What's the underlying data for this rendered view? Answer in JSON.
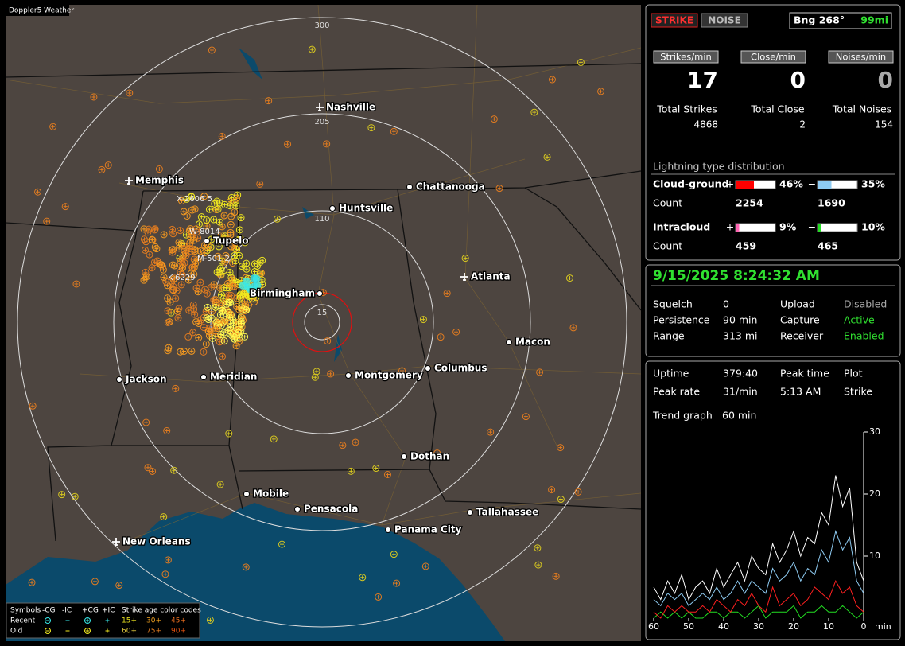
{
  "map": {
    "title": "Doppler5 Weather",
    "ring_labels": [
      "300",
      "205",
      "110",
      "15"
    ],
    "cities": [
      "Nashville",
      "Memphis",
      "Chattanooga",
      "Huntsville",
      "Tupelo",
      "Birmingham",
      "Atlanta",
      "Macon",
      "Jackson",
      "Meridian",
      "Montgomery",
      "Columbus",
      "Dothan",
      "Mobile",
      "Pensacola",
      "Tallahassee",
      "Panama City",
      "New Orleans"
    ],
    "strike_labels": [
      "X-2606 5",
      "W-8014",
      "M-501 2",
      "K-6229"
    ],
    "legend": {
      "symbols_label": "Symbols",
      "types": [
        "-CG",
        "-IC",
        "+CG",
        "+IC"
      ],
      "age_label": "Strike age color codes",
      "rows": [
        {
          "name": "Recent",
          "ages": [
            "15+",
            "30+",
            "45+"
          ]
        },
        {
          "name": "Old",
          "ages": [
            "60+",
            "75+",
            "90+"
          ]
        }
      ]
    }
  },
  "panel": {
    "modes": [
      "STRIKE",
      "NOISE"
    ],
    "bearing": "Bng 268°",
    "distance": "99mi",
    "rates": [
      {
        "label": "Strikes/min",
        "value": 17,
        "total_label": "Total Strikes",
        "total": 4868
      },
      {
        "label": "Close/min",
        "value": 0,
        "total_label": "Total Close",
        "total": 2
      },
      {
        "label": "Noises/min",
        "value": 0,
        "total_label": "Total Noises",
        "total": 154
      }
    ],
    "distribution": {
      "title": "Lightning type distribution",
      "count_label": "Count",
      "rows": [
        {
          "name": "Cloud-ground",
          "parts": [
            {
              "sign": "+",
              "color": "#ff0000",
              "value": 46,
              "label": "46%",
              "count": 2254
            },
            {
              "sign": "−",
              "color": "#8ecbf2",
              "value": 35,
              "label": "35%",
              "count": 1690
            }
          ]
        },
        {
          "name": "Intracloud",
          "parts": [
            {
              "sign": "+",
              "color": "#ff66b3",
              "value": 9,
              "label": "9%",
              "count": 459
            },
            {
              "sign": "−",
              "color": "#22dd22",
              "value": 10,
              "label": "10%",
              "count": 465
            }
          ]
        }
      ]
    },
    "datetime": "9/15/2025 8:24:32 AM",
    "settings": [
      [
        "Squelch",
        "0",
        "Upload",
        "Disabled"
      ],
      [
        "Persistence",
        "90 min",
        "Capture",
        "Active"
      ],
      [
        "Range",
        "313 mi",
        "Receiver",
        "Enabled"
      ]
    ],
    "stats": [
      [
        "Uptime",
        "379:40",
        "Peak time",
        "Plot"
      ],
      [
        "Peak rate",
        "31/min",
        "5:13 AM",
        "Strike"
      ]
    ],
    "trend": {
      "label": "Trend graph",
      "window": "60 min",
      "x_unit": "min",
      "xlim": [
        60,
        0
      ],
      "xticks": [
        60,
        50,
        40,
        30,
        20,
        10,
        0
      ],
      "ylim": [
        0,
        30
      ],
      "yticks": [
        10,
        20,
        30
      ],
      "x": [
        60,
        58,
        56,
        54,
        52,
        50,
        48,
        46,
        44,
        42,
        40,
        38,
        36,
        34,
        32,
        30,
        28,
        26,
        24,
        22,
        20,
        18,
        16,
        14,
        12,
        10,
        8,
        6,
        4,
        2,
        0
      ],
      "series": [
        {
          "color": "#ffffff",
          "values": [
            5,
            3,
            6,
            4,
            7,
            3,
            5,
            6,
            4,
            8,
            5,
            7,
            9,
            6,
            10,
            8,
            7,
            12,
            9,
            11,
            14,
            10,
            13,
            12,
            17,
            15,
            23,
            18,
            21,
            9,
            6
          ]
        },
        {
          "color": "#8ecbf2",
          "values": [
            3,
            2,
            4,
            3,
            4,
            2,
            3,
            4,
            3,
            5,
            3,
            4,
            6,
            4,
            6,
            5,
            4,
            8,
            6,
            7,
            9,
            6,
            8,
            7,
            11,
            9,
            14,
            11,
            13,
            6,
            4
          ]
        },
        {
          "color": "#ff2020",
          "values": [
            1,
            0,
            2,
            1,
            2,
            1,
            1,
            2,
            1,
            3,
            2,
            1,
            3,
            2,
            4,
            2,
            1,
            5,
            2,
            3,
            4,
            2,
            3,
            5,
            4,
            3,
            6,
            4,
            5,
            2,
            1
          ]
        },
        {
          "color": "#22dd22",
          "values": [
            0,
            1,
            0,
            1,
            0,
            1,
            0,
            0,
            1,
            1,
            0,
            1,
            1,
            0,
            1,
            2,
            0,
            1,
            1,
            1,
            2,
            0,
            1,
            1,
            2,
            1,
            1,
            2,
            1,
            0,
            1
          ]
        }
      ]
    }
  }
}
